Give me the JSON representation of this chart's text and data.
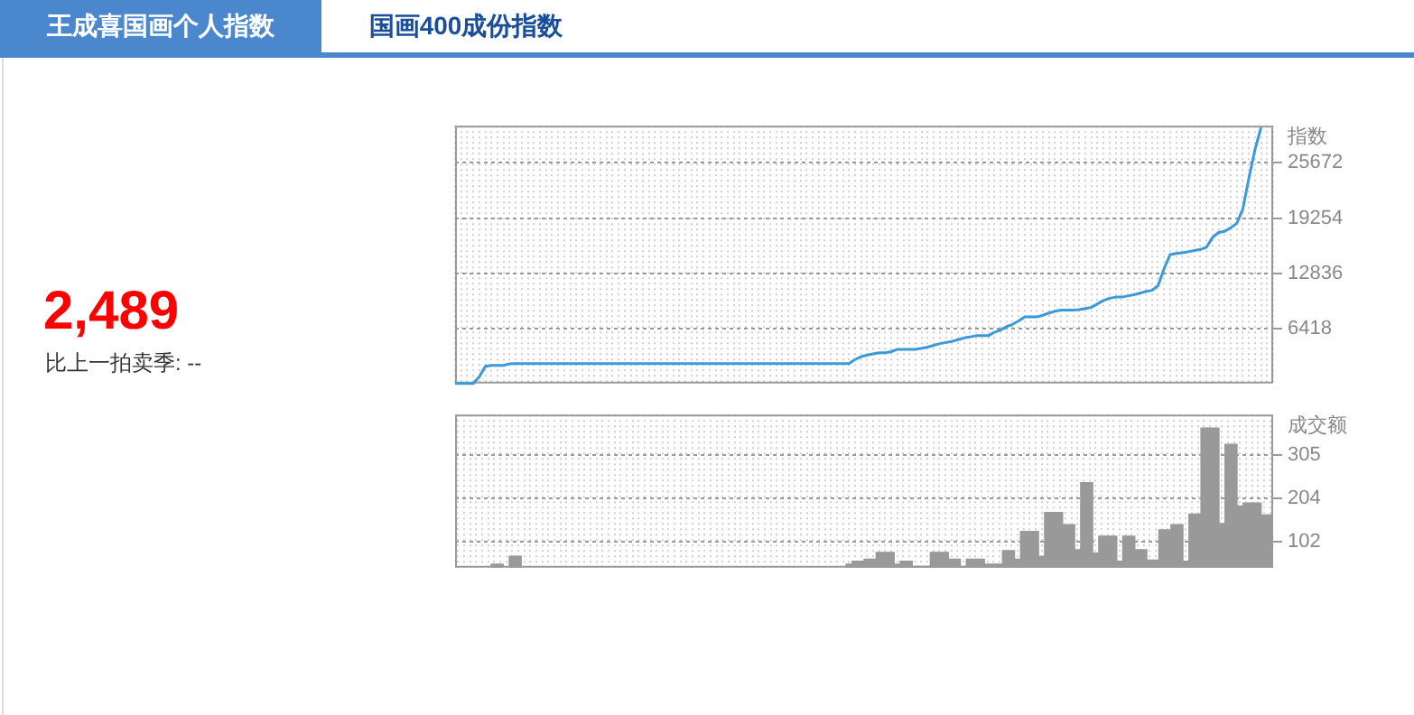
{
  "chart_data": [
    {
      "type": "other",
      "annotations": [
        "王成喜国画个人指数",
        "国画400成份指数",
        "2,489",
        "比上一拍卖季: --"
      ]
    },
    {
      "type": "line",
      "ylabel": "指数",
      "grid": true,
      "ylim": [
        0,
        30000
      ],
      "yticks": [
        6418,
        12836,
        19254,
        25672
      ],
      "categories": [
        null,
        null,
        null,
        null,
        null,
        null,
        null,
        null,
        null,
        null,
        null,
        null,
        null,
        null,
        null,
        null,
        null,
        null,
        null,
        null,
        null,
        null,
        null,
        null,
        null,
        null,
        null,
        null,
        null,
        null,
        null,
        null,
        null,
        null,
        null,
        null,
        null,
        null,
        null,
        null,
        null,
        null,
        null,
        null,
        null,
        null,
        null,
        null,
        null,
        null,
        null,
        null,
        null,
        null,
        null,
        null,
        null,
        null,
        null,
        null,
        null,
        null,
        null,
        null,
        null,
        null,
        null,
        null,
        null,
        null,
        null,
        null,
        null,
        null,
        null,
        null,
        null,
        null,
        null,
        null,
        null,
        null,
        null,
        null,
        null,
        null,
        null,
        null,
        null,
        null,
        null,
        null,
        null,
        null,
        null,
        null,
        null,
        null,
        null,
        null,
        null,
        null,
        null,
        null,
        null,
        null,
        null,
        null,
        null,
        null,
        null,
        null,
        null,
        null,
        null,
        null,
        null,
        null,
        null,
        null,
        null,
        null,
        null,
        null,
        null,
        null,
        null,
        null,
        null,
        null,
        null,
        null,
        null,
        null,
        null,
        null
      ],
      "series": [
        {
          "color": "#3a9ad9",
          "values": [
            0,
            0,
            0,
            0,
            800,
            2000,
            2100,
            2100,
            2100,
            2300,
            2320,
            2320,
            2320,
            2320,
            2320,
            2320,
            2320,
            2320,
            2320,
            2320,
            2320,
            2320,
            2320,
            2320,
            2320,
            2320,
            2320,
            2320,
            2320,
            2320,
            2320,
            2320,
            2320,
            2320,
            2320,
            2320,
            2320,
            2320,
            2320,
            2320,
            2320,
            2320,
            2320,
            2320,
            2320,
            2320,
            2320,
            2320,
            2320,
            2320,
            2320,
            2320,
            2320,
            2320,
            2320,
            2320,
            2320,
            2320,
            2320,
            2320,
            2320,
            2320,
            2320,
            2320,
            2320,
            2320,
            2790,
            3120,
            3320,
            3450,
            3580,
            3580,
            3710,
            3980,
            3980,
            3980,
            3980,
            4110,
            4240,
            4440,
            4640,
            4770,
            4900,
            5100,
            5300,
            5430,
            5560,
            5560,
            5560,
            5960,
            6220,
            6620,
            6880,
            7280,
            7740,
            7740,
            7740,
            7940,
            8200,
            8400,
            8530,
            8530,
            8530,
            8600,
            8730,
            8860,
            9260,
            9650,
            9920,
            10050,
            10050,
            10180,
            10320,
            10510,
            10710,
            10840,
            11370,
            13350,
            15000,
            15140,
            15200,
            15330,
            15470,
            15600,
            15860,
            16980,
            17580,
            17710,
            18110,
            18640,
            20300,
            23900,
            27200,
            29800,
            null,
            null
          ]
        }
      ]
    },
    {
      "type": "bar",
      "ylabel": "成交额",
      "grid": true,
      "ylim": [
        40,
        400
      ],
      "yticks": [
        102,
        204,
        305
      ],
      "color": "#999999",
      "categories": [
        null,
        null,
        null,
        null,
        null,
        null,
        null,
        null,
        null,
        null,
        null,
        null,
        null,
        null,
        null,
        null,
        null,
        null,
        null,
        null,
        null,
        null,
        null,
        null,
        null,
        null,
        null,
        null,
        null,
        null,
        null,
        null,
        null,
        null,
        null,
        null,
        null,
        null,
        null,
        null,
        null,
        null,
        null,
        null,
        null,
        null,
        null,
        null,
        null,
        null,
        null,
        null,
        null,
        null,
        null,
        null,
        null,
        null,
        null,
        null,
        null,
        null,
        null,
        null,
        null,
        null,
        null,
        null,
        null,
        null,
        null,
        null,
        null,
        null,
        null,
        null,
        null,
        null,
        null,
        null,
        null,
        null,
        null,
        null,
        null,
        null,
        null,
        null,
        null,
        null,
        null,
        null,
        null,
        null,
        null,
        null,
        null,
        null,
        null,
        null,
        null,
        null,
        null,
        null,
        null,
        null,
        null,
        null,
        null,
        null,
        null,
        null,
        null,
        null,
        null,
        null,
        null,
        null,
        null,
        null,
        null,
        null,
        null,
        null,
        null,
        null,
        null,
        null,
        null,
        null,
        null,
        null,
        null,
        null,
        null,
        null
      ],
      "values": [
        null,
        null,
        null,
        null,
        null,
        null,
        48,
        48,
        null,
        67,
        67,
        null,
        null,
        null,
        null,
        null,
        null,
        null,
        null,
        null,
        null,
        null,
        null,
        null,
        null,
        null,
        null,
        null,
        null,
        null,
        null,
        null,
        null,
        null,
        null,
        null,
        null,
        null,
        null,
        null,
        null,
        null,
        null,
        null,
        null,
        null,
        null,
        null,
        null,
        null,
        null,
        null,
        null,
        null,
        null,
        null,
        null,
        null,
        null,
        null,
        null,
        null,
        null,
        null,
        null,
        48,
        55,
        55,
        60,
        60,
        76,
        76,
        76,
        48,
        55,
        55,
        43,
        43,
        43,
        76,
        76,
        76,
        60,
        60,
        43,
        60,
        60,
        60,
        48,
        48,
        48,
        80,
        80,
        60,
        125,
        125,
        125,
        67,
        170,
        170,
        170,
        141,
        141,
        82,
        240,
        240,
        74,
        114,
        114,
        114,
        55,
        114,
        114,
        82,
        82,
        58,
        58,
        129,
        129,
        141,
        141,
        55,
        166,
        166,
        368,
        368,
        368,
        144,
        330,
        330,
        185,
        192,
        192,
        192,
        164,
        164
      ]
    }
  ]
}
